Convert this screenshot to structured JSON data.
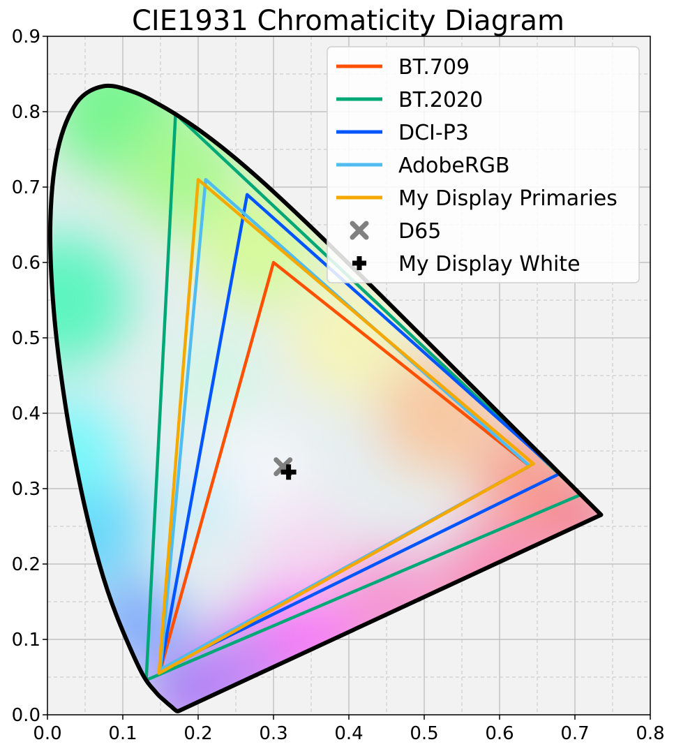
{
  "chart_data": {
    "type": "line",
    "title": "CIE1931 Chromaticity Diagram",
    "xlabel": "",
    "ylabel": "",
    "xlim": [
      0.0,
      0.8
    ],
    "ylim": [
      0.0,
      0.9
    ],
    "x_ticks": [
      "0.0",
      "0.1",
      "0.2",
      "0.3",
      "0.4",
      "0.5",
      "0.6",
      "0.7",
      "0.8"
    ],
    "y_ticks": [
      "0.0",
      "0.1",
      "0.2",
      "0.3",
      "0.4",
      "0.5",
      "0.6",
      "0.7",
      "0.8",
      "0.9"
    ],
    "grid": true,
    "minor_grid": true,
    "legend_position": "top-right",
    "spectral_locus": [
      [
        0.1741,
        0.005
      ],
      [
        0.1733,
        0.0048
      ],
      [
        0.1726,
        0.0048
      ],
      [
        0.1714,
        0.0051
      ],
      [
        0.1689,
        0.0069
      ],
      [
        0.1644,
        0.0109
      ],
      [
        0.1566,
        0.0177
      ],
      [
        0.144,
        0.0297
      ],
      [
        0.1241,
        0.0578
      ],
      [
        0.0913,
        0.1327
      ],
      [
        0.0687,
        0.2007
      ],
      [
        0.0454,
        0.295
      ],
      [
        0.0235,
        0.4127
      ],
      [
        0.0082,
        0.5384
      ],
      [
        0.0039,
        0.6548
      ],
      [
        0.0139,
        0.7502
      ],
      [
        0.0389,
        0.812
      ],
      [
        0.0743,
        0.8338
      ],
      [
        0.1142,
        0.8262
      ],
      [
        0.1547,
        0.8059
      ],
      [
        0.1929,
        0.7816
      ],
      [
        0.2296,
        0.7543
      ],
      [
        0.2658,
        0.7243
      ],
      [
        0.3016,
        0.6923
      ],
      [
        0.3373,
        0.6589
      ],
      [
        0.3731,
        0.6245
      ],
      [
        0.4087,
        0.5896
      ],
      [
        0.4441,
        0.5547
      ],
      [
        0.4788,
        0.5202
      ],
      [
        0.5125,
        0.4866
      ],
      [
        0.5448,
        0.4544
      ],
      [
        0.5752,
        0.4242
      ],
      [
        0.6029,
        0.3965
      ],
      [
        0.627,
        0.3725
      ],
      [
        0.6482,
        0.3514
      ],
      [
        0.6658,
        0.334
      ],
      [
        0.6801,
        0.3197
      ],
      [
        0.6915,
        0.3083
      ],
      [
        0.7006,
        0.2993
      ],
      [
        0.714,
        0.2859
      ],
      [
        0.7347,
        0.2653
      ]
    ],
    "series": [
      {
        "name": "BT.709",
        "color": "#ff5000",
        "points": [
          [
            0.64,
            0.33
          ],
          [
            0.3,
            0.6
          ],
          [
            0.15,
            0.06
          ]
        ]
      },
      {
        "name": "BT.2020",
        "color": "#00a878",
        "points": [
          [
            0.708,
            0.292
          ],
          [
            0.17,
            0.797
          ],
          [
            0.131,
            0.046
          ]
        ]
      },
      {
        "name": "DCI-P3",
        "color": "#0055ff",
        "points": [
          [
            0.68,
            0.32
          ],
          [
            0.265,
            0.69
          ],
          [
            0.15,
            0.06
          ]
        ]
      },
      {
        "name": "AdobeRGB",
        "color": "#50bcf0",
        "points": [
          [
            0.64,
            0.33
          ],
          [
            0.21,
            0.71
          ],
          [
            0.15,
            0.06
          ]
        ]
      },
      {
        "name": "My Display Primaries",
        "color": "#f5a800",
        "points": [
          [
            0.645,
            0.333
          ],
          [
            0.2,
            0.71
          ],
          [
            0.148,
            0.055
          ]
        ]
      }
    ],
    "markers": [
      {
        "name": "D65",
        "symbol": "x",
        "color": "#808080",
        "x": 0.3127,
        "y": 0.329
      },
      {
        "name": "My Display White",
        "symbol": "plus",
        "color": "#000000",
        "x": 0.32,
        "y": 0.322
      }
    ]
  }
}
